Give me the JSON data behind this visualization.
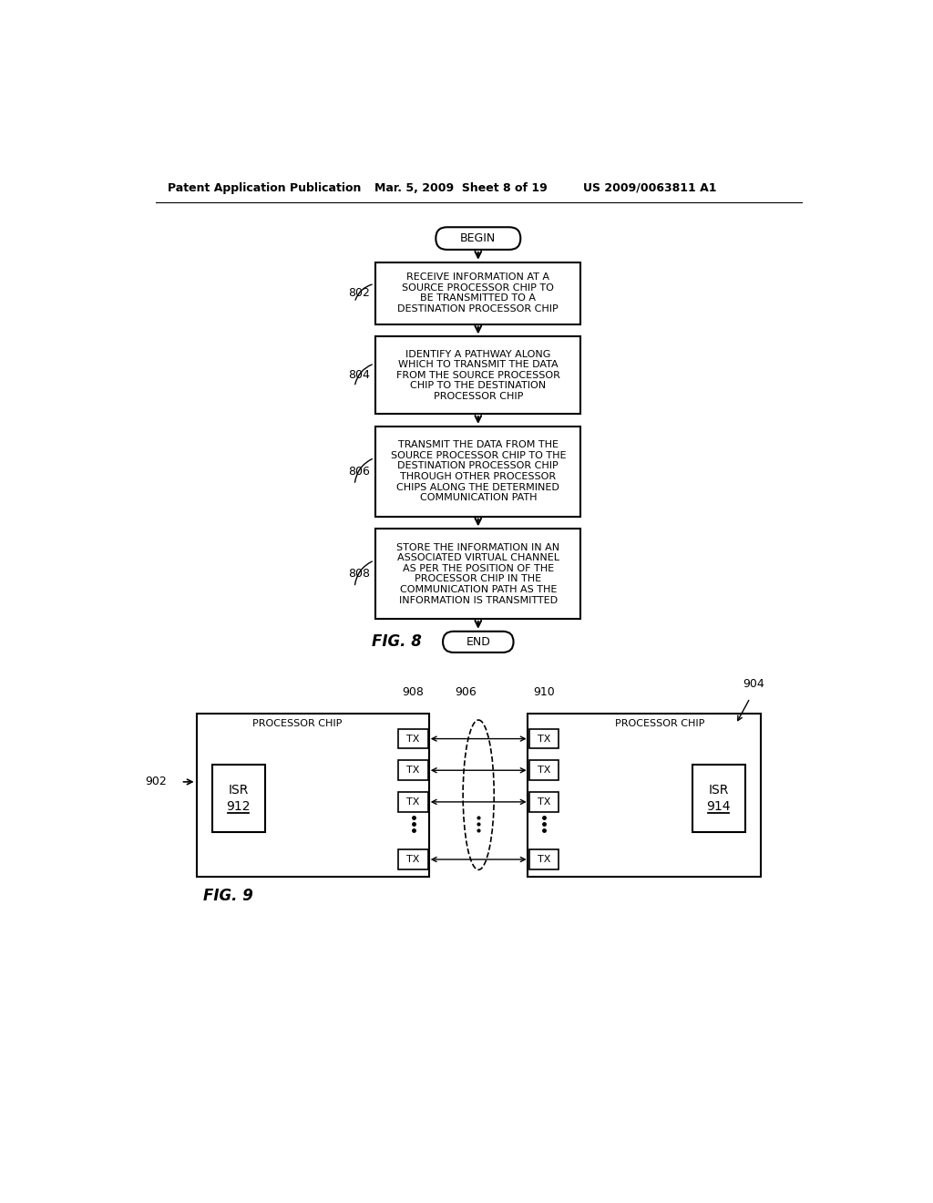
{
  "header_left": "Patent Application Publication",
  "header_mid": "Mar. 5, 2009  Sheet 8 of 19",
  "header_right": "US 2009/0063811 A1",
  "bg_color": "#ffffff",
  "fig8_label": "FIG. 8",
  "fig9_label": "FIG. 9",
  "box802": "RECEIVE INFORMATION AT A\nSOURCE PROCESSOR CHIP TO\nBE TRANSMITTED TO A\nDESTINATION PROCESSOR CHIP",
  "box804": "IDENTIFY A PATHWAY ALONG\nWHICH TO TRANSMIT THE DATA\nFROM THE SOURCE PROCESSOR\nCHIP TO THE DESTINATION\nPROCESSOR CHIP",
  "box806": "TRANSMIT THE DATA FROM THE\nSOURCE PROCESSOR CHIP TO THE\nDESTINATION PROCESSOR CHIP\nTHROUGH OTHER PROCESSOR\nCHIPS ALONG THE DETERMINED\nCOMMUNICATION PATH",
  "box808": "STORE THE INFORMATION IN AN\nASSOCIATED VIRTUAL CHANNEL\nAS PER THE POSITION OF THE\nPROCESSOR CHIP IN THE\nCOMMUNICATION PATH AS THE\nINFORMATION IS TRANSMITTED"
}
